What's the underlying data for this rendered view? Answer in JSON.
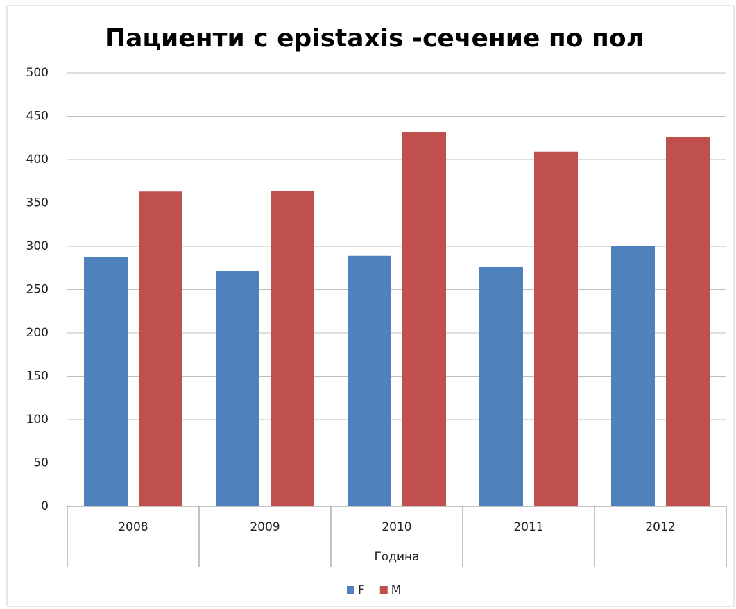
{
  "chart_data": {
    "type": "bar",
    "title": "Пациенти с epistaxis -сечение по пол",
    "xlabel": "Година",
    "categories": [
      "2008",
      "2009",
      "2010",
      "2011",
      "2012"
    ],
    "series": [
      {
        "name": "F",
        "color": "#4f81bd",
        "values": [
          288,
          272,
          289,
          276,
          300
        ]
      },
      {
        "name": "M",
        "color": "#c0504d",
        "values": [
          363,
          364,
          432,
          409,
          426
        ]
      }
    ],
    "ylim": [
      0,
      500
    ],
    "yticks": [
      0,
      50,
      100,
      150,
      200,
      250,
      300,
      350,
      400,
      450,
      500
    ],
    "grid": true,
    "legend": "bottom"
  }
}
